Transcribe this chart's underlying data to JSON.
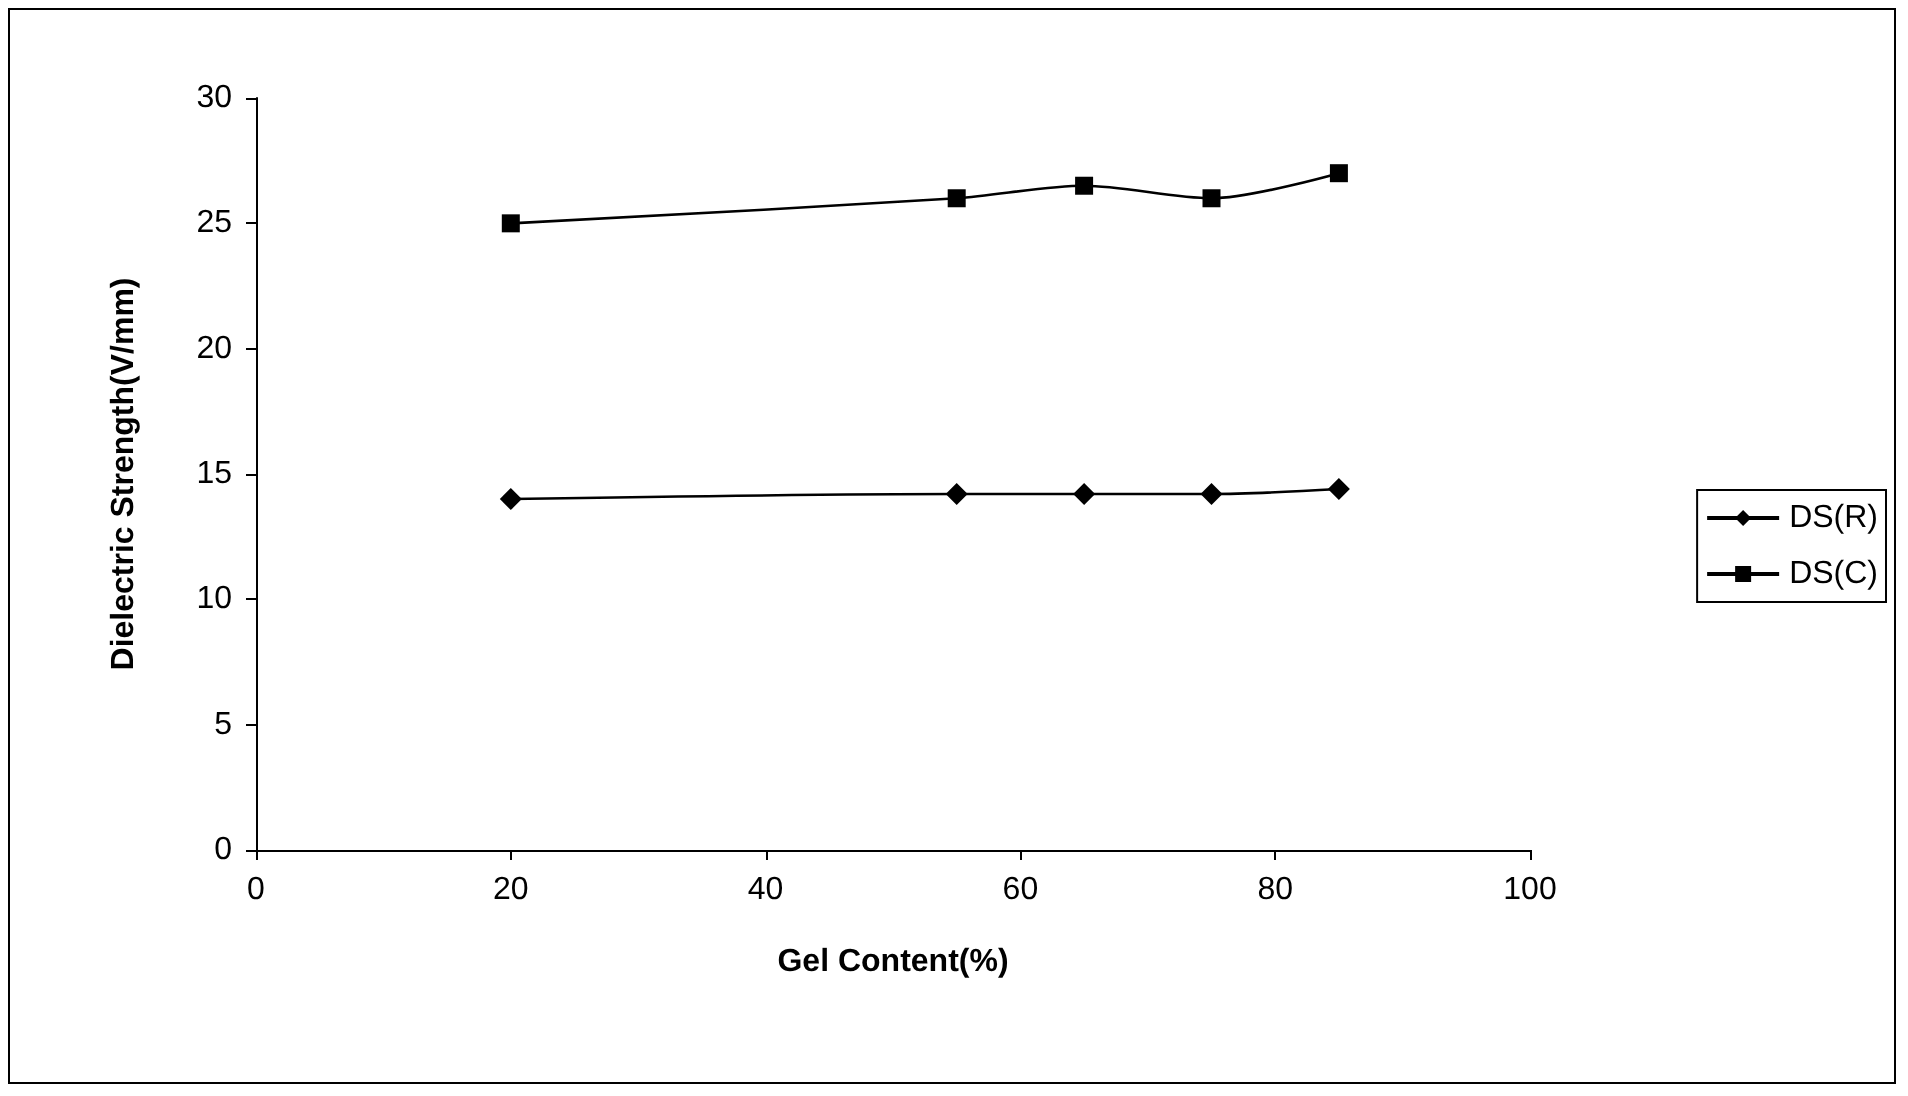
{
  "chart_data": {
    "type": "line",
    "xlabel": "Gel Content(%)",
    "ylabel": "Dielectric Strength(V/mm)",
    "x": [
      20,
      55,
      65,
      75,
      85
    ],
    "series": [
      {
        "name": "DS(R)",
        "color": "#000000",
        "marker": "diamond",
        "values": [
          14,
          14.2,
          14.2,
          14.2,
          14.4
        ]
      },
      {
        "name": "DS(C)",
        "color": "#000000",
        "marker": "square",
        "values": [
          25,
          26,
          26.5,
          26,
          27
        ]
      }
    ],
    "xlim": [
      0,
      100
    ],
    "xticks": [
      0,
      20,
      40,
      60,
      80,
      100
    ],
    "ylim": [
      0,
      30
    ],
    "yticks": [
      0,
      5,
      10,
      15,
      20,
      25,
      30
    ],
    "grid": false,
    "legend": "right",
    "line_style": "solid"
  }
}
